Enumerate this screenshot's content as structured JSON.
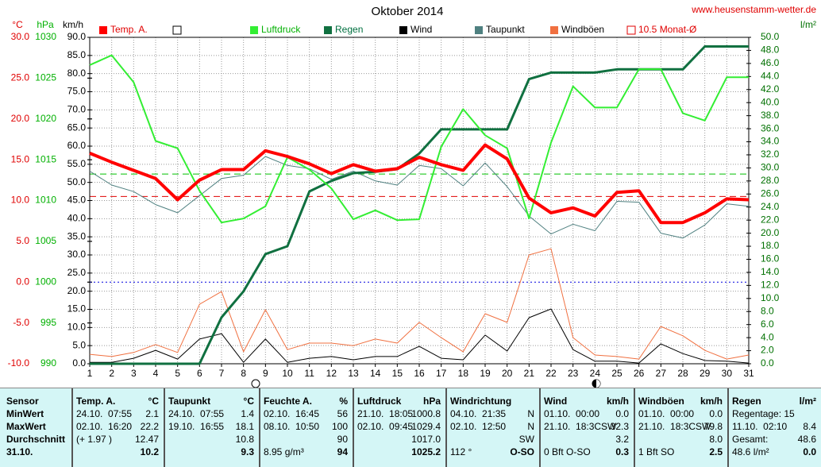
{
  "chart_data": {
    "type": "line",
    "title": "Oktober 2014",
    "source": "www.heusenstamm-wetter.de",
    "x": [
      1,
      2,
      3,
      4,
      5,
      6,
      7,
      8,
      9,
      10,
      11,
      12,
      13,
      14,
      15,
      16,
      17,
      18,
      19,
      20,
      21,
      22,
      23,
      24,
      25,
      26,
      27,
      28,
      29,
      30,
      31
    ],
    "xlim": [
      1,
      31
    ],
    "xticks": [
      1,
      2,
      3,
      4,
      5,
      6,
      7,
      8,
      9,
      10,
      11,
      12,
      13,
      14,
      15,
      16,
      17,
      18,
      19,
      20,
      21,
      22,
      23,
      24,
      25,
      26,
      27,
      28,
      29,
      30,
      31
    ],
    "grid": true,
    "ylabel": "°C",
    "ylim": [
      -10,
      30
    ],
    "yticks": [
      {
        "value": -10,
        "label": "-10.0"
      },
      {
        "value": -5,
        "label": "-5.0"
      },
      {
        "value": 0,
        "label": "0.0"
      },
      {
        "value": 5,
        "label": "5.0"
      },
      {
        "value": 10,
        "label": "10.0"
      },
      {
        "value": 15,
        "label": "15.0"
      },
      {
        "value": 20,
        "label": "20.0"
      },
      {
        "value": 25,
        "label": "25.0"
      },
      {
        "value": 30,
        "label": "30.0"
      }
    ],
    "y2label": "hPa",
    "y2lim": [
      990,
      1030
    ],
    "y2ticks": [
      990,
      995,
      1000,
      1005,
      1010,
      1015,
      1020,
      1025,
      1030
    ],
    "y3label": "km/h",
    "y3lim": [
      0,
      90
    ],
    "y3ticks": [
      {
        "value": 0,
        "label": "0.0"
      },
      {
        "value": 5,
        "label": "5.0"
      },
      {
        "value": 10,
        "label": "10.0"
      },
      {
        "value": 15,
        "label": "15.0"
      },
      {
        "value": 20,
        "label": "20.0"
      },
      {
        "value": 25,
        "label": "25.0"
      },
      {
        "value": 30,
        "label": "30.0"
      },
      {
        "value": 35,
        "label": "35.0"
      },
      {
        "value": 40,
        "label": "40.0"
      },
      {
        "value": 45,
        "label": "45.0"
      },
      {
        "value": 50,
        "label": "50.0"
      },
      {
        "value": 55,
        "label": "55.0"
      },
      {
        "value": 60,
        "label": "60.0"
      },
      {
        "value": 65,
        "label": "65.0"
      },
      {
        "value": 70,
        "label": "70.0"
      },
      {
        "value": 75,
        "label": "75.0"
      },
      {
        "value": 80,
        "label": "80.0"
      },
      {
        "value": 85,
        "label": "85.0"
      },
      {
        "value": 90,
        "label": "90.0"
      }
    ],
    "y4label": "l/m²",
    "y4lim": [
      0,
      50
    ],
    "y4ticks": [
      {
        "value": 0,
        "label": "0.0"
      },
      {
        "value": 2,
        "label": "2.0"
      },
      {
        "value": 4,
        "label": "4.0"
      },
      {
        "value": 6,
        "label": "6.0"
      },
      {
        "value": 8,
        "label": "8.0"
      },
      {
        "value": 10,
        "label": "10.0"
      },
      {
        "value": 12,
        "label": "12.0"
      },
      {
        "value": 14,
        "label": "14.0"
      },
      {
        "value": 16,
        "label": "16.0"
      },
      {
        "value": 18,
        "label": "18.0"
      },
      {
        "value": 20,
        "label": "20.0"
      },
      {
        "value": 22,
        "label": "22.0"
      },
      {
        "value": 24,
        "label": "24.0"
      },
      {
        "value": 26,
        "label": "26.0"
      },
      {
        "value": 28,
        "label": "28.0"
      },
      {
        "value": 30,
        "label": "30.0"
      },
      {
        "value": 32,
        "label": "32.0"
      },
      {
        "value": 34,
        "label": "34.0"
      },
      {
        "value": 36,
        "label": "36.0"
      },
      {
        "value": 38,
        "label": "38.0"
      },
      {
        "value": 40,
        "label": "40.0"
      },
      {
        "value": 42,
        "label": "42.0"
      },
      {
        "value": 44,
        "label": "44.0"
      },
      {
        "value": 46,
        "label": "46.0"
      },
      {
        "value": 48,
        "label": "48.0"
      },
      {
        "value": 50,
        "label": "50.0"
      }
    ],
    "series": [
      {
        "name": "Temp. A.",
        "color": "#ff0000",
        "axis": "y",
        "values": [
          15.8,
          14.7,
          13.7,
          12.7,
          10.1,
          12.5,
          13.8,
          13.8,
          16.1,
          15.4,
          14.5,
          13.3,
          14.4,
          13.6,
          13.9,
          15.3,
          14.4,
          13.7,
          16.8,
          15.1,
          10.3,
          8.5,
          9.1,
          8.1,
          11.0,
          11.2,
          7.3,
          7.3,
          8.5,
          10.2,
          10.1
        ]
      },
      {
        "name": "Luftdruck",
        "color": "#33ee33",
        "axis": "y2",
        "values": [
          1026.6,
          1027.8,
          1024.5,
          1017.3,
          1016.4,
          1011.2,
          1007.3,
          1007.8,
          1009.3,
          1015.3,
          1013.8,
          1011.5,
          1007.7,
          1008.8,
          1007.6,
          1007.7,
          1016.6,
          1021.2,
          1018.0,
          1016.4,
          1007.8,
          1017.1,
          1024.0,
          1021.4,
          1021.4,
          1026.1,
          1026.1,
          1020.7,
          1019.8,
          1025.1,
          1025.1
        ]
      },
      {
        "name": "Regen",
        "color": "#107040",
        "axis": "y4",
        "values": [
          0,
          0,
          0,
          0,
          0,
          0,
          7.1,
          11.1,
          16.8,
          18.0,
          26.4,
          28.0,
          29.2,
          29.4,
          29.8,
          32.2,
          35.9,
          35.9,
          35.9,
          35.9,
          43.6,
          44.6,
          44.6,
          44.6,
          45.1,
          45.1,
          45.1,
          45.1,
          48.6,
          48.6,
          48.6
        ]
      },
      {
        "name": "Wind",
        "color": "#000000",
        "axis": "y3",
        "values": [
          0.4,
          0.4,
          1.5,
          3.7,
          1.3,
          6.8,
          8.3,
          0.4,
          6.8,
          0.4,
          1.5,
          2.0,
          1.1,
          2.0,
          2.0,
          4.8,
          1.5,
          1.1,
          7.9,
          3.5,
          12.7,
          15.1,
          3.9,
          0.7,
          0.7,
          0.2,
          5.5,
          2.8,
          0.9,
          0.7,
          0.2
        ]
      },
      {
        "name": "Taupunkt",
        "color": "#4f8080",
        "axis": "y",
        "values": [
          13.6,
          11.9,
          11.1,
          9.5,
          8.5,
          10.6,
          12.7,
          13.1,
          15.4,
          14.3,
          13.9,
          12.6,
          13.6,
          12.4,
          11.9,
          14.3,
          13.9,
          11.8,
          14.6,
          11.7,
          8.1,
          5.9,
          7.1,
          6.3,
          9.9,
          9.8,
          6.0,
          5.4,
          7.0,
          9.6,
          9.3
        ]
      },
      {
        "name": "Windböen",
        "color": "#f07040",
        "axis": "y3",
        "values": [
          2.6,
          2.0,
          3.1,
          5.3,
          3.1,
          16.4,
          19.9,
          3.3,
          14.9,
          3.9,
          5.7,
          5.7,
          5.0,
          6.8,
          5.7,
          11.4,
          7.2,
          3.3,
          13.8,
          11.4,
          30.0,
          31.7,
          7.2,
          2.4,
          2.0,
          1.3,
          10.3,
          7.7,
          3.7,
          1.3,
          2.4
        ]
      }
    ],
    "reference_lines": [
      {
        "name": "10.5 Monat-Ø",
        "value": 10.5,
        "axis": "y",
        "color": "#e00000"
      },
      {
        "value": 1013.25,
        "axis": "y2",
        "color": "#00c000"
      },
      {
        "value": 0,
        "axis": "y",
        "color": "#0000e0"
      }
    ]
  },
  "table": {
    "sections": [
      {
        "title": "Sensor",
        "rows": [
          {
            "note": "MinWert"
          },
          {
            "note": "MaxWert"
          },
          {
            "note": "Durchschnitt"
          },
          {
            "note": "31.10."
          }
        ]
      },
      {
        "title": "Temp. A.",
        "unit": "°C",
        "rows": [
          {
            "note": "24.10.  07:55",
            "value": "2.1"
          },
          {
            "note": "02.10.  16:20",
            "value": "22.2"
          },
          {
            "note": "(+ 1.97 )",
            "value": "12.47"
          },
          {
            "value": "10.2"
          }
        ]
      },
      {
        "title": "Taupunkt",
        "unit": "°C",
        "rows": [
          {
            "note": "24.10.  07:55",
            "value": "1.4"
          },
          {
            "note": "19.10.  16:55",
            "value": "18.1"
          },
          {
            "value": "10.8"
          },
          {
            "value": "9.3"
          }
        ]
      },
      {
        "title": "Feuchte A.",
        "unit": "%",
        "rows": [
          {
            "note": "02.10.  16:45",
            "value": "56"
          },
          {
            "note": "08.10.  10:50",
            "value": "100"
          },
          {
            "value": "90"
          },
          {
            "note": "8.95 g/m³",
            "value": "94"
          }
        ]
      },
      {
        "title": "Luftdruck",
        "unit": "hPa",
        "rows": [
          {
            "note": "21.10.  18:05",
            "value": "1000.8"
          },
          {
            "note": "02.10.  09:45",
            "value": "1029.4"
          },
          {
            "value": "1017.0"
          },
          {
            "value": "1025.2"
          }
        ]
      },
      {
        "title": "Windrichtung",
        "rows": [
          {
            "note": "04.10.  21:35",
            "value": "N"
          },
          {
            "note": "02.10.  12:50",
            "value": "N"
          },
          {
            "value": "SW"
          },
          {
            "note": "112 °",
            "value": "O-SO"
          }
        ]
      },
      {
        "title": "Wind",
        "unit": "km/h",
        "rows": [
          {
            "note": "01.10.  00:00",
            "value": "0.0"
          },
          {
            "note": "21.10.  18:3CSW",
            "value": "32.3"
          },
          {
            "value": "3.2"
          },
          {
            "note": "0 Bft O-SO",
            "value": "0.3"
          }
        ]
      },
      {
        "title": "Windböen",
        "unit": "km/h",
        "rows": [
          {
            "note": "01.10.  00:00",
            "value": "0.0"
          },
          {
            "note": "21.10.  18:3CSW",
            "value": "79.8"
          },
          {
            "value": "8.0"
          },
          {
            "note": "1 Bft SO",
            "value": "2.5"
          }
        ]
      },
      {
        "title": "Regen",
        "unit": "l/m²",
        "rows": [
          {
            "note": "Regentage: 15"
          },
          {
            "note": "11.10.  02:10",
            "value": "8.4"
          },
          {
            "note": "Gesamt:",
            "value": "48.6"
          },
          {
            "note": "48.6 l/m²",
            "value": "0.0"
          }
        ]
      }
    ]
  }
}
